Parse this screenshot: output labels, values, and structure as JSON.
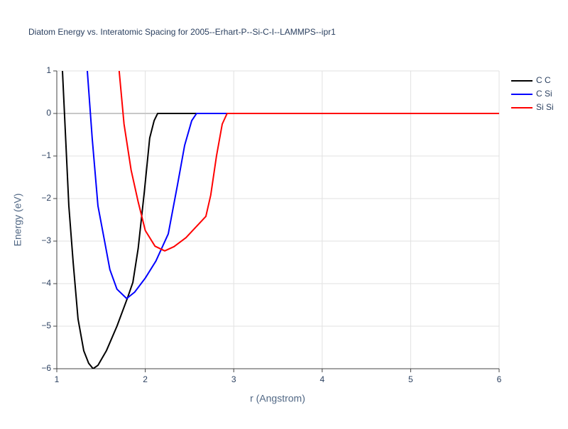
{
  "chart_data": {
    "type": "line",
    "title": "Diatom Energy vs. Interatomic Spacing for 2005--Erhart-P--Si-C-I--LAMMPS--ipr1",
    "x_label": "r (Angstrom)",
    "y_label": "Energy (eV)",
    "xlim": [
      1,
      6
    ],
    "ylim": [
      -6,
      1
    ],
    "xticks": [
      1,
      2,
      3,
      4,
      5,
      6
    ],
    "yticks": [
      {
        "value": -6,
        "label": "−6"
      },
      {
        "value": -5,
        "label": "−5"
      },
      {
        "value": -4,
        "label": "−4"
      },
      {
        "value": -3,
        "label": "−3"
      },
      {
        "value": -2,
        "label": "−2"
      },
      {
        "value": -1,
        "label": "−1"
      },
      0,
      1
    ],
    "grid": true,
    "legend": "right",
    "series": [
      {
        "name": "C C",
        "color": "#000000",
        "x": [
          1.064,
          1.136,
          1.185,
          1.24,
          1.305,
          1.36,
          1.41,
          1.465,
          1.56,
          1.68,
          1.8,
          1.86,
          1.92,
          1.99,
          2.05,
          2.1,
          2.14,
          3,
          4,
          5,
          6
        ],
        "values": [
          1.0,
          -2.17,
          -3.5,
          -4.83,
          -5.58,
          -5.87,
          -6.0,
          -5.92,
          -5.58,
          -5.0,
          -4.33,
          -3.97,
          -3.17,
          -1.83,
          -0.58,
          -0.17,
          0,
          0,
          0,
          0,
          0
        ]
      },
      {
        "name": "C Si",
        "color": "#0000ff",
        "x": [
          1.345,
          1.4,
          1.465,
          1.54,
          1.6,
          1.68,
          1.79,
          1.88,
          2.0,
          2.12,
          2.26,
          2.365,
          2.445,
          2.525,
          2.58,
          3,
          4,
          5,
          6
        ],
        "values": [
          1.0,
          -0.58,
          -2.17,
          -3.0,
          -3.67,
          -4.13,
          -4.35,
          -4.2,
          -3.87,
          -3.47,
          -2.83,
          -1.67,
          -0.75,
          -0.17,
          0,
          0,
          0,
          0,
          0
        ]
      },
      {
        "name": "Si Si",
        "color": "#ff0000",
        "x": [
          1.705,
          1.76,
          1.84,
          1.92,
          2.0,
          2.11,
          2.22,
          2.325,
          2.46,
          2.685,
          2.74,
          2.805,
          2.87,
          2.925,
          3.5,
          4,
          5,
          6
        ],
        "values": [
          1.0,
          -0.25,
          -1.33,
          -2.08,
          -2.75,
          -3.12,
          -3.23,
          -3.13,
          -2.92,
          -2.42,
          -1.92,
          -1.0,
          -0.25,
          0,
          0,
          0,
          0,
          0
        ]
      }
    ]
  }
}
